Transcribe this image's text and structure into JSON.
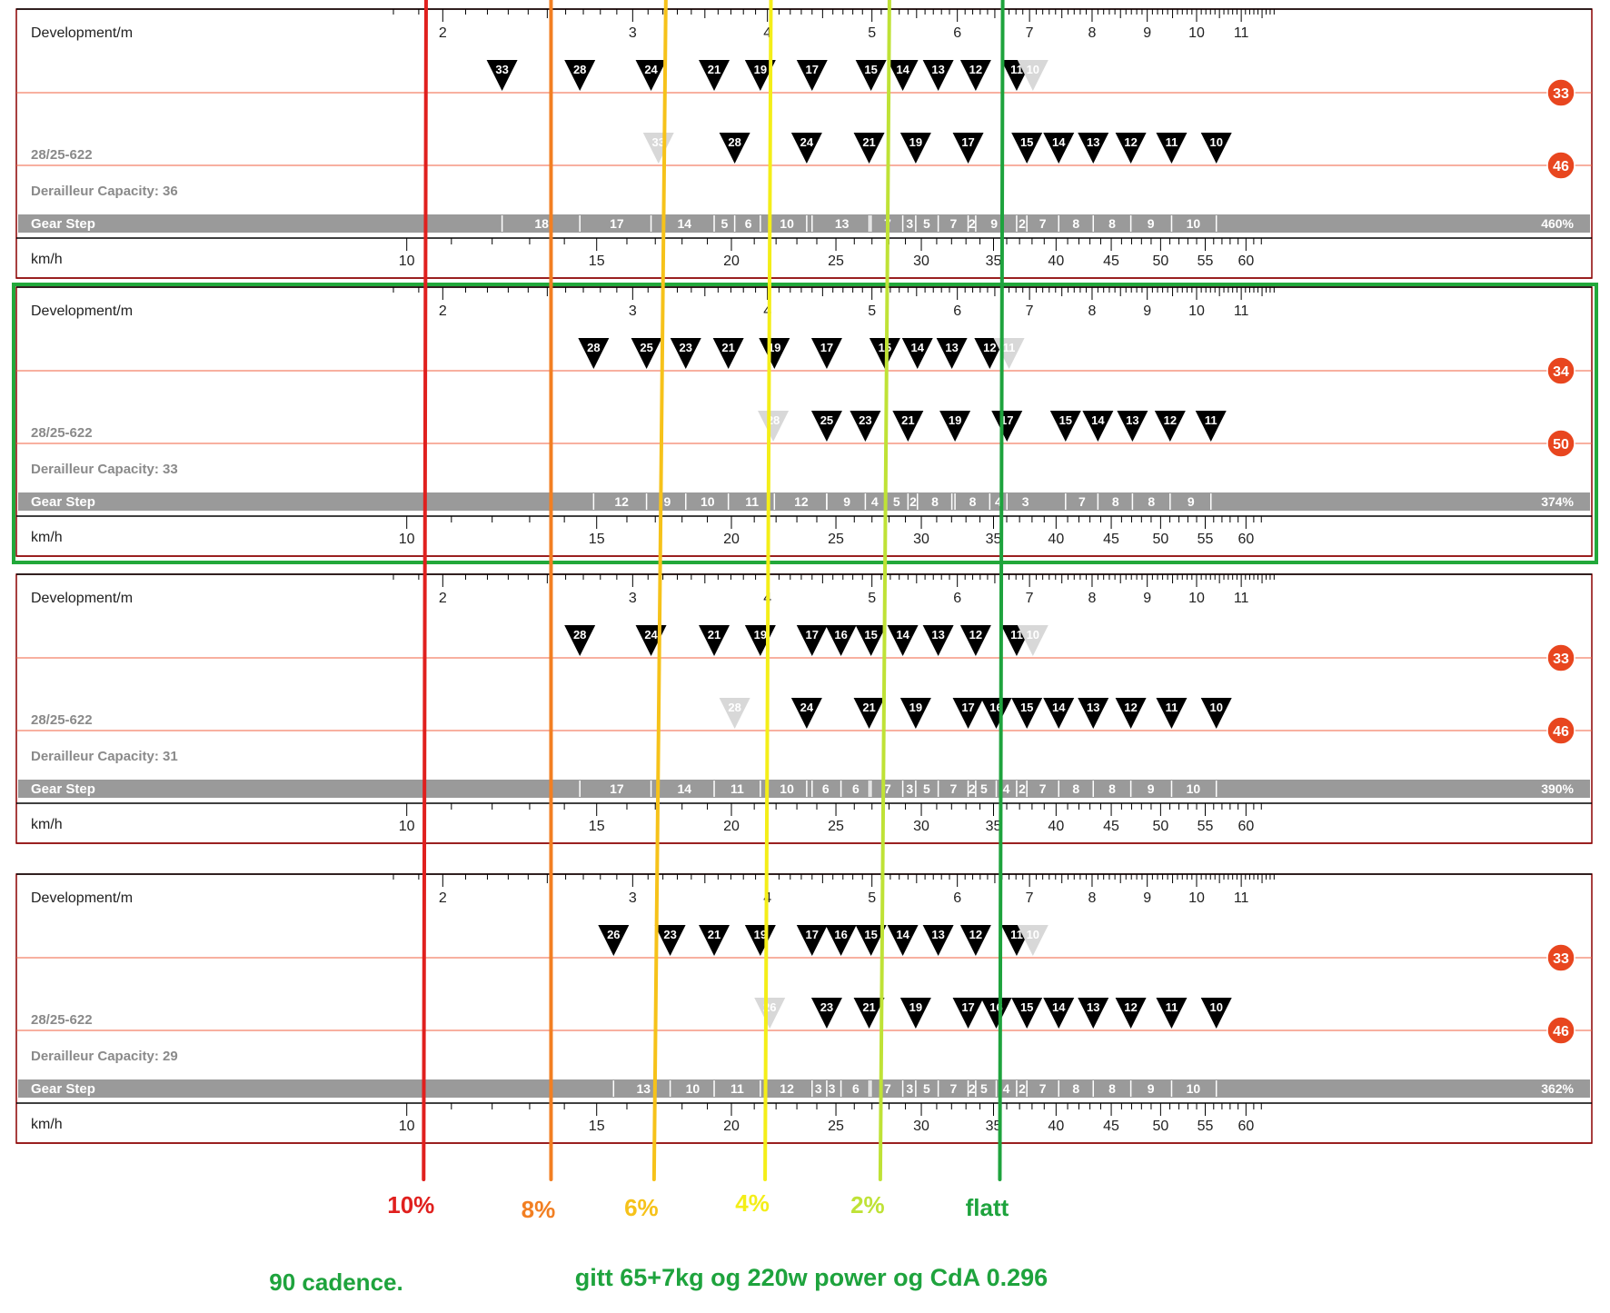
{
  "colors": {
    "frame_border": "#8b0000",
    "highlight_border": "#22a83a",
    "chainring_line": "#f06040",
    "chainring_badge": "#e8461f",
    "gear_step_bar": "#9a9a9a",
    "cog_black": "#000000",
    "cog_ghost": "#d8d8d8",
    "grey_text": "#8a8a8a",
    "line_10": "#e0201e",
    "line_8": "#f27f22",
    "line_6": "#f6c21a",
    "line_4": "#f4ee18",
    "line_2": "#bfe236",
    "line_flat": "#1ea33d",
    "note_green": "#1ea33d"
  },
  "common": {
    "development_label": "Development/m",
    "kmh_label": "km/h",
    "gear_step_label": "Gear Step",
    "dev_ticks": [
      "2",
      "3",
      "4",
      "5",
      "6",
      "7",
      "8",
      "9",
      "10",
      "11"
    ],
    "kmh_ticks": [
      "10",
      "15",
      "20",
      "25",
      "30",
      "35",
      "40",
      "45",
      "50",
      "55",
      "60"
    ]
  },
  "panels": [
    {
      "highlighted": false,
      "tire": "28/25-622",
      "capacity": "Derailleur Capacity: 36",
      "small_ring": "33",
      "big_ring": "46",
      "small_cogs": [
        {
          "label": "33",
          "dev": 2.27
        },
        {
          "label": "28",
          "dev": 2.68
        },
        {
          "label": "24",
          "dev": 3.12
        },
        {
          "label": "21",
          "dev": 3.57
        },
        {
          "label": "19",
          "dev": 3.94
        },
        {
          "label": "17",
          "dev": 4.4
        },
        {
          "label": "15",
          "dev": 4.99
        },
        {
          "label": "14",
          "dev": 5.34
        },
        {
          "label": "13",
          "dev": 5.76
        },
        {
          "label": "12",
          "dev": 6.24
        },
        {
          "label": "11",
          "dev": 6.81
        },
        {
          "label": "10",
          "dev": 7.05,
          "ghost": true
        }
      ],
      "big_cogs": [
        {
          "label": "33",
          "dev": 3.17,
          "ghost": true
        },
        {
          "label": "28",
          "dev": 3.73
        },
        {
          "label": "24",
          "dev": 4.35
        },
        {
          "label": "21",
          "dev": 4.97
        },
        {
          "label": "19",
          "dev": 5.49
        },
        {
          "label": "17",
          "dev": 6.14
        },
        {
          "label": "15",
          "dev": 6.96
        },
        {
          "label": "14",
          "dev": 7.45
        },
        {
          "label": "13",
          "dev": 8.02
        },
        {
          "label": "12",
          "dev": 8.69
        },
        {
          "label": "11",
          "dev": 9.48
        },
        {
          "label": "10",
          "dev": 10.43
        }
      ],
      "gear_steps": [
        {
          "label": "18",
          "dev": 2.47
        },
        {
          "label": "17",
          "dev": 2.9
        },
        {
          "label": "14",
          "dev": 3.35
        },
        {
          "label": "5",
          "dev": 3.65
        },
        {
          "label": "6",
          "dev": 3.84
        },
        {
          "label": "10",
          "dev": 4.17
        },
        {
          "label": "13",
          "dev": 4.69
        },
        {
          "label": "7",
          "dev": 5.17
        },
        {
          "label": "3",
          "dev": 5.42
        },
        {
          "label": "5",
          "dev": 5.62
        },
        {
          "label": "7",
          "dev": 5.95
        },
        {
          "label": "2",
          "dev": 6.19
        },
        {
          "label": "9",
          "dev": 6.49
        },
        {
          "label": "2",
          "dev": 6.89
        },
        {
          "label": "7",
          "dev": 7.2
        },
        {
          "label": "8",
          "dev": 7.73
        },
        {
          "label": "8",
          "dev": 8.35
        },
        {
          "label": "9",
          "dev": 9.07
        },
        {
          "label": "10",
          "dev": 9.93
        }
      ],
      "range": "460%"
    },
    {
      "highlighted": true,
      "tire": "28/25-622",
      "capacity": "Derailleur Capacity: 33",
      "small_ring": "34",
      "big_ring": "50",
      "small_cogs": [
        {
          "label": "28",
          "dev": 2.76
        },
        {
          "label": "25",
          "dev": 3.09
        },
        {
          "label": "23",
          "dev": 3.36
        },
        {
          "label": "21",
          "dev": 3.68
        },
        {
          "label": "19",
          "dev": 4.06
        },
        {
          "label": "17",
          "dev": 4.54
        },
        {
          "label": "15",
          "dev": 5.14
        },
        {
          "label": "14",
          "dev": 5.51
        },
        {
          "label": "13",
          "dev": 5.93
        },
        {
          "label": "12",
          "dev": 6.43
        },
        {
          "label": "11",
          "dev": 6.7,
          "ghost": true
        }
      ],
      "big_cogs": [
        {
          "label": "28",
          "dev": 4.05,
          "ghost": true
        },
        {
          "label": "25",
          "dev": 4.54
        },
        {
          "label": "23",
          "dev": 4.93
        },
        {
          "label": "21",
          "dev": 5.4
        },
        {
          "label": "19",
          "dev": 5.97
        },
        {
          "label": "17",
          "dev": 6.67
        },
        {
          "label": "15",
          "dev": 7.56
        },
        {
          "label": "14",
          "dev": 8.1
        },
        {
          "label": "13",
          "dev": 8.72
        },
        {
          "label": "12",
          "dev": 9.45
        },
        {
          "label": "11",
          "dev": 10.31
        }
      ],
      "gear_steps": [
        {
          "label": "12",
          "dev": 2.93
        },
        {
          "label": "9",
          "dev": 3.23
        },
        {
          "label": "10",
          "dev": 3.52
        },
        {
          "label": "11",
          "dev": 3.87
        },
        {
          "label": "12",
          "dev": 4.3
        },
        {
          "label": "9",
          "dev": 4.74
        },
        {
          "label": "4",
          "dev": 5.03
        },
        {
          "label": "5",
          "dev": 5.27
        },
        {
          "label": "2",
          "dev": 5.46
        },
        {
          "label": "8",
          "dev": 5.72
        },
        {
          "label": "8",
          "dev": 6.2
        },
        {
          "label": "4",
          "dev": 6.55
        },
        {
          "label": "3",
          "dev": 6.94
        },
        {
          "label": "7",
          "dev": 7.83
        },
        {
          "label": "8",
          "dev": 8.41
        },
        {
          "label": "8",
          "dev": 9.08
        },
        {
          "label": "9",
          "dev": 9.88
        }
      ],
      "range": "374%"
    },
    {
      "highlighted": false,
      "tire": "28/25-622",
      "capacity": "Derailleur Capacity: 31",
      "small_ring": "33",
      "big_ring": "46",
      "small_cogs": [
        {
          "label": "28",
          "dev": 2.68
        },
        {
          "label": "24",
          "dev": 3.12
        },
        {
          "label": "21",
          "dev": 3.57
        },
        {
          "label": "19",
          "dev": 3.94
        },
        {
          "label": "17",
          "dev": 4.4
        },
        {
          "label": "16",
          "dev": 4.68
        },
        {
          "label": "15",
          "dev": 4.99
        },
        {
          "label": "14",
          "dev": 5.34
        },
        {
          "label": "13",
          "dev": 5.76
        },
        {
          "label": "12",
          "dev": 6.24
        },
        {
          "label": "11",
          "dev": 6.81
        },
        {
          "label": "10",
          "dev": 7.05,
          "ghost": true
        }
      ],
      "big_cogs": [
        {
          "label": "28",
          "dev": 3.73,
          "ghost": true
        },
        {
          "label": "24",
          "dev": 4.35
        },
        {
          "label": "21",
          "dev": 4.97
        },
        {
          "label": "19",
          "dev": 5.49
        },
        {
          "label": "17",
          "dev": 6.14
        },
        {
          "label": "16",
          "dev": 6.52
        },
        {
          "label": "15",
          "dev": 6.96
        },
        {
          "label": "14",
          "dev": 7.45
        },
        {
          "label": "13",
          "dev": 8.02
        },
        {
          "label": "12",
          "dev": 8.69
        },
        {
          "label": "11",
          "dev": 9.48
        },
        {
          "label": "10",
          "dev": 10.43
        }
      ],
      "gear_steps": [
        {
          "label": "17",
          "dev": 2.9
        },
        {
          "label": "14",
          "dev": 3.35
        },
        {
          "label": "11",
          "dev": 3.75
        },
        {
          "label": "10",
          "dev": 4.17
        },
        {
          "label": "6",
          "dev": 4.53
        },
        {
          "label": "6",
          "dev": 4.83
        },
        {
          "label": "7",
          "dev": 5.17
        },
        {
          "label": "3",
          "dev": 5.42
        },
        {
          "label": "5",
          "dev": 5.62
        },
        {
          "label": "7",
          "dev": 5.95
        },
        {
          "label": "2",
          "dev": 6.19
        },
        {
          "label": "5",
          "dev": 6.35
        },
        {
          "label": "4",
          "dev": 6.66
        },
        {
          "label": "2",
          "dev": 6.89
        },
        {
          "label": "7",
          "dev": 7.2
        },
        {
          "label": "8",
          "dev": 7.73
        },
        {
          "label": "8",
          "dev": 8.35
        },
        {
          "label": "9",
          "dev": 9.07
        },
        {
          "label": "10",
          "dev": 9.93
        }
      ],
      "range": "390%"
    },
    {
      "highlighted": false,
      "tire": "28/25-622",
      "capacity": "Derailleur Capacity: 29",
      "small_ring": "33",
      "big_ring": "46",
      "small_cogs": [
        {
          "label": "26",
          "dev": 2.88
        },
        {
          "label": "23",
          "dev": 3.25
        },
        {
          "label": "21",
          "dev": 3.57
        },
        {
          "label": "19",
          "dev": 3.94
        },
        {
          "label": "17",
          "dev": 4.4
        },
        {
          "label": "16",
          "dev": 4.68
        },
        {
          "label": "15",
          "dev": 4.99
        },
        {
          "label": "14",
          "dev": 5.34
        },
        {
          "label": "13",
          "dev": 5.76
        },
        {
          "label": "12",
          "dev": 6.24
        },
        {
          "label": "11",
          "dev": 6.81
        },
        {
          "label": "10",
          "dev": 7.05,
          "ghost": true
        }
      ],
      "big_cogs": [
        {
          "label": "26",
          "dev": 4.02,
          "ghost": true
        },
        {
          "label": "23",
          "dev": 4.54
        },
        {
          "label": "21",
          "dev": 4.97
        },
        {
          "label": "19",
          "dev": 5.49
        },
        {
          "label": "17",
          "dev": 6.14
        },
        {
          "label": "16",
          "dev": 6.52
        },
        {
          "label": "15",
          "dev": 6.96
        },
        {
          "label": "14",
          "dev": 7.45
        },
        {
          "label": "13",
          "dev": 8.02
        },
        {
          "label": "12",
          "dev": 8.69
        },
        {
          "label": "11",
          "dev": 9.48
        },
        {
          "label": "10",
          "dev": 10.43
        }
      ],
      "gear_steps": [
        {
          "label": "13",
          "dev": 3.07
        },
        {
          "label": "10",
          "dev": 3.41
        },
        {
          "label": "11",
          "dev": 3.75
        },
        {
          "label": "12",
          "dev": 4.17
        },
        {
          "label": "3",
          "dev": 4.46
        },
        {
          "label": "3",
          "dev": 4.59
        },
        {
          "label": "6",
          "dev": 4.83
        },
        {
          "label": "7",
          "dev": 5.17
        },
        {
          "label": "3",
          "dev": 5.42
        },
        {
          "label": "5",
          "dev": 5.62
        },
        {
          "label": "7",
          "dev": 5.95
        },
        {
          "label": "2",
          "dev": 6.19
        },
        {
          "label": "5",
          "dev": 6.35
        },
        {
          "label": "4",
          "dev": 6.66
        },
        {
          "label": "2",
          "dev": 6.89
        },
        {
          "label": "7",
          "dev": 7.2
        },
        {
          "label": "8",
          "dev": 7.73
        },
        {
          "label": "8",
          "dev": 8.35
        },
        {
          "label": "9",
          "dev": 9.07
        },
        {
          "label": "10",
          "dev": 9.93
        }
      ],
      "range": "362%"
    }
  ],
  "gradient_lines": [
    {
      "label": "10%",
      "color_key": "line_10",
      "top_dev": 1.93,
      "bottom_dev": 1.92
    },
    {
      "label": "8%",
      "color_key": "line_8",
      "top_dev": 2.52,
      "bottom_dev": 2.52
    },
    {
      "label": "6%",
      "color_key": "line_6",
      "top_dev": 3.22,
      "bottom_dev": 3.14
    },
    {
      "label": "4%",
      "color_key": "line_4",
      "top_dev": 4.03,
      "bottom_dev": 3.98
    },
    {
      "label": "2%",
      "color_key": "line_2",
      "top_dev": 5.19,
      "bottom_dev": 5.09
    },
    {
      "label": "flatt",
      "color_key": "line_flat",
      "top_dev": 6.61,
      "bottom_dev": 6.57
    }
  ],
  "notes": {
    "cadence": "90 cadence.",
    "conditions": "gitt 65+7kg og 220w power og CdA 0.296"
  }
}
